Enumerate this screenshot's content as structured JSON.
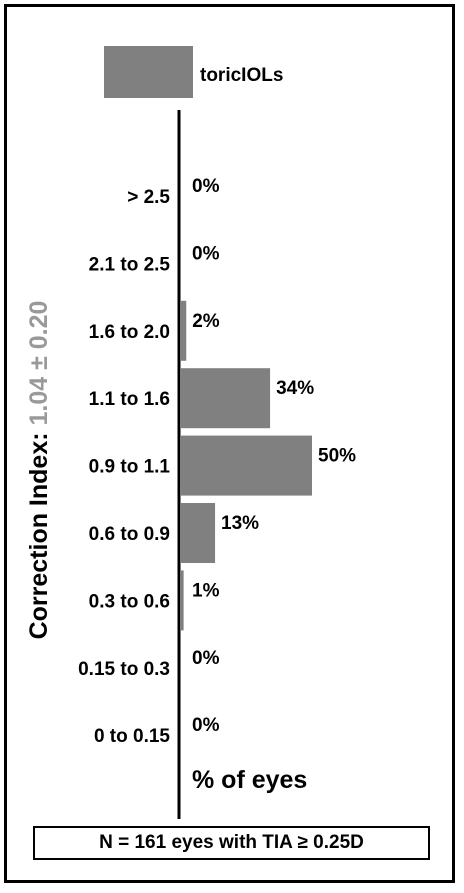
{
  "chart_data": {
    "type": "bar",
    "orientation": "horizontal",
    "categories": [
      "> 2.5",
      "2.1 to 2.5",
      "1.6 to 2.0",
      "1.1 to 1.6",
      "0.9 to 1.1",
      "0.6 to 0.9",
      "0.3 to 0.6",
      "0.15 to 0.3",
      "0 to 0.15"
    ],
    "series": [
      {
        "name": "toricIOLs",
        "values": [
          0,
          0,
          2,
          34,
          50,
          13,
          1,
          0,
          0
        ],
        "labels": [
          "0%",
          "0%",
          "2%",
          "34%",
          "50%",
          "13%",
          "1%",
          "0%",
          "0%"
        ]
      }
    ],
    "ylabel_prefix": "Correction Index: ",
    "ylabel_value": "1.04 ± 0.20",
    "xlabel": "% of eyes",
    "xlim": [
      0,
      100
    ],
    "legend_position": "top",
    "grid": false,
    "footnote": "N = 161 eyes with TIA ≥ 0.25D",
    "colors": {
      "bar": "#808080",
      "axis": "#000000",
      "ylabel_value": "#999999",
      "text": "#000000"
    }
  }
}
